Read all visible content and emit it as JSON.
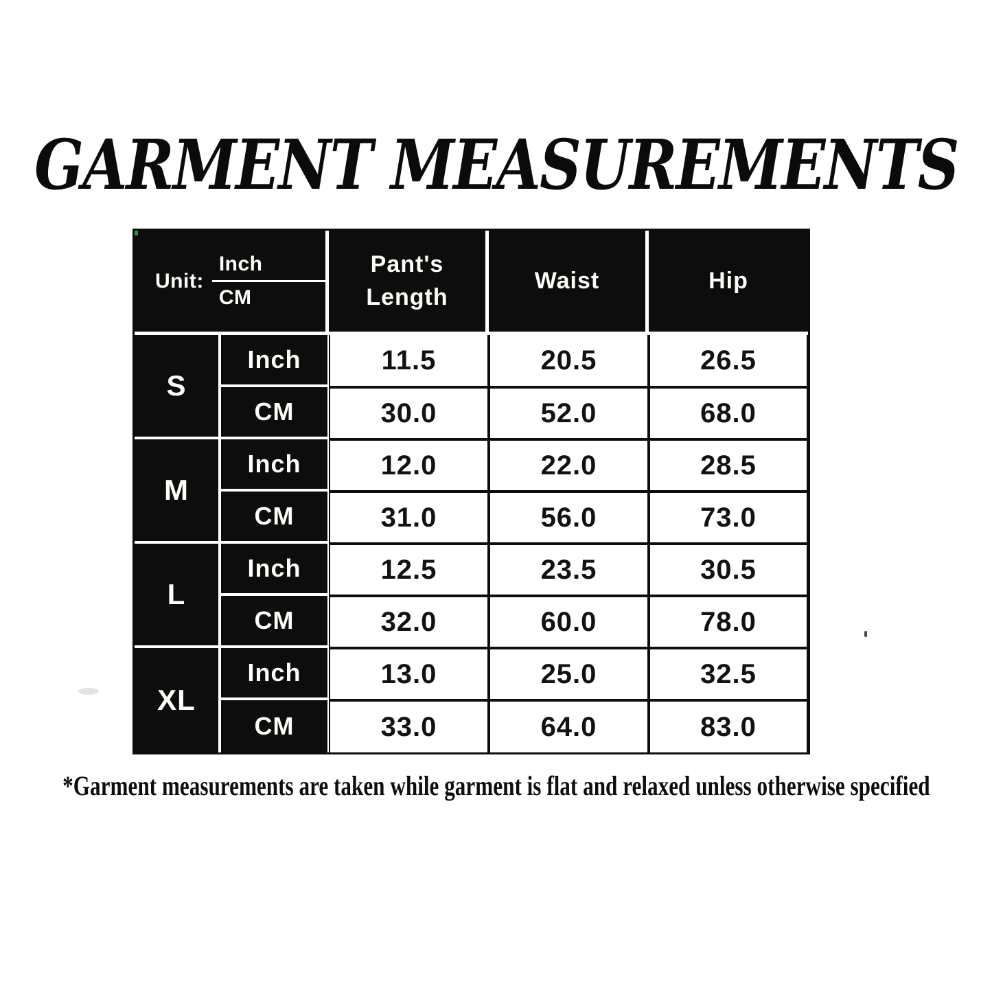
{
  "title": "GARMENT MEASUREMENTS",
  "table": {
    "unit": {
      "label": "Unit:",
      "numerator": "Inch",
      "denominator": "CM"
    },
    "col_headers": {
      "pants_length": "Pant's\nLength",
      "waist": "Waist",
      "hip": "Hip"
    },
    "unit_row_labels": {
      "inch": "Inch",
      "cm": "CM"
    },
    "rows": [
      {
        "size": "S",
        "inch": [
          "11.5",
          "20.5",
          "26.5"
        ],
        "cm": [
          "30.0",
          "52.0",
          "68.0"
        ]
      },
      {
        "size": "M",
        "inch": [
          "12.0",
          "22.0",
          "28.5"
        ],
        "cm": [
          "31.0",
          "56.0",
          "73.0"
        ]
      },
      {
        "size": "L",
        "inch": [
          "12.5",
          "23.5",
          "30.5"
        ],
        "cm": [
          "32.0",
          "60.0",
          "78.0"
        ]
      },
      {
        "size": "XL",
        "inch": [
          "13.0",
          "25.0",
          "32.5"
        ],
        "cm": [
          "33.0",
          "64.0",
          "83.0"
        ]
      }
    ]
  },
  "footnote": "*Garment measurements are taken while garment is flat and relaxed unless otherwise specified",
  "colors": {
    "cell_black": "#0d0d0d",
    "grid_white": "#ffffff",
    "data_text": "#121212",
    "page_background": "#ffffff"
  },
  "chart_data": {
    "type": "table",
    "title": "GARMENT MEASUREMENTS",
    "columns": [
      "Size",
      "Unit",
      "Pant's Length",
      "Waist",
      "Hip"
    ],
    "rows": [
      [
        "S",
        "Inch",
        11.5,
        20.5,
        26.5
      ],
      [
        "S",
        "CM",
        30.0,
        52.0,
        68.0
      ],
      [
        "M",
        "Inch",
        12.0,
        22.0,
        28.5
      ],
      [
        "M",
        "CM",
        31.0,
        56.0,
        73.0
      ],
      [
        "L",
        "Inch",
        12.5,
        23.5,
        30.5
      ],
      [
        "L",
        "CM",
        32.0,
        60.0,
        78.0
      ],
      [
        "XL",
        "Inch",
        13.0,
        25.0,
        32.5
      ],
      [
        "XL",
        "CM",
        33.0,
        64.0,
        83.0
      ]
    ],
    "footnote": "*Garment measurements are taken while garment is flat and relaxed unless otherwise specified"
  }
}
